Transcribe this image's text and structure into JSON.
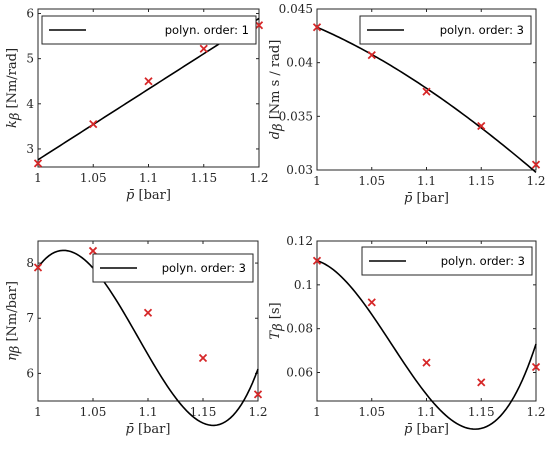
{
  "chart_data": [
    {
      "type": "scatter",
      "xlabel_symbol": "p̄",
      "xlabel_unit": "[bar]",
      "ylabel_symbol": "k",
      "ylabel_sub": "β",
      "ylabel_unit": "[Nm/rad]",
      "xlim": [
        1,
        1.2
      ],
      "ylim": [
        2.6,
        6.1
      ],
      "xticks": [
        1,
        1.05,
        1.1,
        1.15,
        1.2
      ],
      "xtick_labels": [
        "1",
        "1.05",
        "1.1",
        "1.15",
        "1.2"
      ],
      "yticks": [
        3,
        4,
        5,
        6
      ],
      "ytick_labels": [
        "3",
        "4",
        "5",
        "6"
      ],
      "points": [
        [
          1.0,
          2.68
        ],
        [
          1.05,
          3.55
        ],
        [
          1.1,
          4.5
        ],
        [
          1.15,
          5.22
        ],
        [
          1.2,
          5.74
        ]
      ],
      "fit_coeffs": [
        2.76,
        15.66,
        0,
        0
      ],
      "legend": "polyn. order: 1",
      "legend_position": "top-left",
      "colors": {
        "marker": "#d62728",
        "line": "#000000"
      }
    },
    {
      "type": "scatter",
      "xlabel_symbol": "p̄",
      "xlabel_unit": "[bar]",
      "ylabel_symbol": "d",
      "ylabel_sub": "β",
      "ylabel_unit": "[Nm s / rad]",
      "xlim": [
        1,
        1.2
      ],
      "ylim": [
        0.03,
        0.045
      ],
      "xticks": [
        1,
        1.05,
        1.1,
        1.15,
        1.2
      ],
      "xtick_labels": [
        "1",
        "1.05",
        "1.1",
        "1.15",
        "1.2"
      ],
      "yticks": [
        0.03,
        0.035,
        0.04,
        0.045
      ],
      "ytick_labels": [
        "0.03",
        "0.035",
        "0.04",
        "0.045"
      ],
      "points": [
        [
          1.0,
          0.0433
        ],
        [
          1.05,
          0.0407
        ],
        [
          1.1,
          0.0373
        ],
        [
          1.15,
          0.0341
        ],
        [
          1.2,
          0.0305
        ]
      ],
      "fit_coeffs": [
        0.0433,
        -0.044,
        -0.14,
        0.11
      ],
      "legend": "polyn. order: 3",
      "legend_position": "top-right",
      "colors": {
        "marker": "#d62728",
        "line": "#000000"
      }
    },
    {
      "type": "scatter",
      "xlabel_symbol": "p̄",
      "xlabel_unit": "[bar]",
      "ylabel_symbol": "η",
      "ylabel_sub": "β",
      "ylabel_unit": "[Nm/bar]",
      "xlim": [
        1,
        1.2
      ],
      "ylim": [
        5.5,
        8.4
      ],
      "xticks": [
        1,
        1.05,
        1.1,
        1.15,
        1.2
      ],
      "xtick_labels": [
        "1",
        "1.05",
        "1.1",
        "1.15",
        "1.2"
      ],
      "yticks": [
        6,
        7,
        8
      ],
      "ytick_labels": [
        "6",
        "7",
        "8"
      ],
      "points": [
        [
          1.0,
          7.92
        ],
        [
          1.05,
          8.22
        ],
        [
          1.1,
          7.1
        ],
        [
          1.15,
          6.28
        ],
        [
          1.2,
          5.62
        ]
      ],
      "fit_coeffs": [
        7.92,
        28,
        -690,
        2520
      ],
      "legend": "polyn. order: 3",
      "legend_position": "top-right",
      "colors": {
        "marker": "#d62728",
        "line": "#000000"
      }
    },
    {
      "type": "scatter",
      "xlabel_symbol": "p̄",
      "xlabel_unit": "[bar]",
      "ylabel_symbol": "T",
      "ylabel_sub": "β",
      "ylabel_unit": "[s]",
      "xlim": [
        1,
        1.2
      ],
      "ylim": [
        0.047,
        0.12
      ],
      "xticks": [
        1,
        1.05,
        1.1,
        1.15,
        1.2
      ],
      "xtick_labels": [
        "1",
        "1.05",
        "1.1",
        "1.15",
        "1.2"
      ],
      "yticks": [
        0.06,
        0.08,
        0.1,
        0.12
      ],
      "ytick_labels": [
        "0.06",
        "0.08",
        "0.1",
        "0.12"
      ],
      "points": [
        [
          1.0,
          0.111
        ],
        [
          1.05,
          0.092
        ],
        [
          1.1,
          0.0645
        ],
        [
          1.15,
          0.0555
        ],
        [
          1.2,
          0.0625
        ]
      ],
      "fit_coeffs": [
        0.111,
        -0.15,
        -9.0,
        44
      ],
      "legend": "polyn. order: 3",
      "legend_position": "top-right",
      "colors": {
        "marker": "#d62728",
        "line": "#000000"
      }
    }
  ]
}
